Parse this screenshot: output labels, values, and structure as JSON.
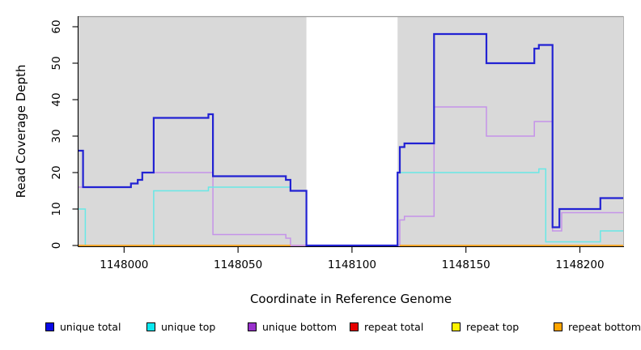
{
  "chart_data": {
    "type": "line",
    "subtype": "step-coverage-plot",
    "title": "",
    "xlabel": "Coordinate in Reference Genome",
    "ylabel": "Read Coverage Depth",
    "xlim": [
      1147980,
      1148219
    ],
    "ylim": [
      0,
      62
    ],
    "xticks": [
      1148000,
      1148050,
      1148100,
      1148150,
      1148200
    ],
    "yticks": [
      0,
      10,
      20,
      30,
      40,
      50,
      60
    ],
    "grid": false,
    "panel_background": "#d9d9d9",
    "mask_region": {
      "x0": 1148080,
      "x1": 1148120,
      "color": "#ffffff"
    },
    "legend_position": "bottom",
    "series": [
      {
        "name": "unique total",
        "line_color": "#2222d3",
        "legend_color": "#0a0ae6",
        "width": 2.2,
        "segments": [
          [
            [
              1147980,
              26
            ],
            [
              1147982,
              16
            ],
            [
              1148003,
              17
            ],
            [
              1148006,
              18
            ],
            [
              1148008,
              20
            ],
            [
              1148013,
              35
            ],
            [
              1148037,
              36
            ],
            [
              1148039,
              19
            ],
            [
              1148071,
              18
            ],
            [
              1148073,
              15
            ],
            [
              1148080,
              0
            ],
            [
              1148120,
              20
            ],
            [
              1148121,
              27
            ],
            [
              1148123,
              28
            ],
            [
              1148136,
              58
            ],
            [
              1148159,
              50
            ],
            [
              1148180,
              54
            ],
            [
              1148182,
              55
            ],
            [
              1148188,
              5
            ],
            [
              1148191,
              10
            ],
            [
              1148209,
              13
            ],
            [
              1148219,
              13
            ]
          ]
        ]
      },
      {
        "name": "unique top",
        "line_color": "#68e8e6",
        "legend_color": "#0ae8f0",
        "width": 1.5,
        "segments": [
          [
            [
              1147980,
              10
            ],
            [
              1147983,
              0
            ],
            [
              1148013,
              15
            ],
            [
              1148037,
              16
            ],
            [
              1148073,
              15
            ],
            [
              1148080,
              0
            ],
            [
              1148120,
              20
            ],
            [
              1148182,
              21
            ],
            [
              1148185,
              1
            ],
            [
              1148209,
              4
            ],
            [
              1148219,
              4
            ]
          ]
        ]
      },
      {
        "name": "unique bottom",
        "line_color": "#c593e9",
        "legend_color": "#9932cc",
        "width": 1.5,
        "segments": [
          [
            [
              1147980,
              16
            ],
            [
              1148003,
              17
            ],
            [
              1148006,
              18
            ],
            [
              1148008,
              20
            ],
            [
              1148039,
              3
            ],
            [
              1148071,
              2
            ],
            [
              1148073,
              0
            ],
            [
              1148121,
              7
            ],
            [
              1148123,
              8
            ],
            [
              1148136,
              38
            ],
            [
              1148159,
              30
            ],
            [
              1148180,
              34
            ],
            [
              1148188,
              4
            ],
            [
              1148192,
              9
            ],
            [
              1148219,
              9
            ]
          ]
        ]
      },
      {
        "name": "repeat total",
        "line_color": "#e05a78",
        "legend_color": "#e60000",
        "width": 1.6,
        "segments": [
          [
            [
              1148073,
              0
            ],
            [
              1148081,
              0
            ]
          ]
        ]
      },
      {
        "name": "repeat top",
        "line_color": "#fff200",
        "legend_color": "#fff200",
        "width": 1.4,
        "segments": []
      },
      {
        "name": "repeat bottom",
        "line_color": "#ffa018",
        "legend_color": "#ffa500",
        "width": 1.8,
        "segments": [
          [
            [
              1147980,
              0
            ],
            [
              1148073,
              0
            ]
          ],
          [
            [
              1148121,
              0
            ],
            [
              1148219,
              0
            ]
          ]
        ]
      }
    ]
  }
}
